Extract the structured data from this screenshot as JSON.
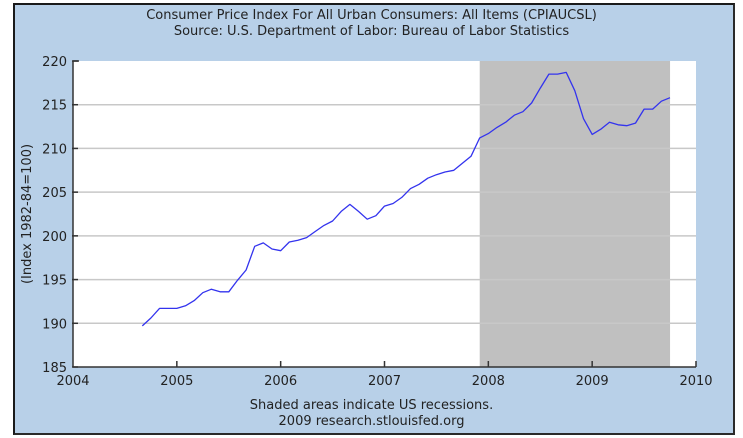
{
  "chart_data": {
    "type": "line",
    "title": "Consumer Price Index For All Urban Consumers: All Items (CPIAUCSL)",
    "subtitle": "Source: U.S. Department of Labor: Bureau of Labor Statistics",
    "xlabel": "",
    "ylabel": "(Index 1982-84=100)",
    "xlim": [
      2004,
      2010
    ],
    "ylim": [
      185,
      220
    ],
    "x_ticks": [
      2004,
      2005,
      2006,
      2007,
      2008,
      2009,
      2010
    ],
    "x_tick_labels": [
      "2004",
      "2005",
      "2006",
      "2007",
      "2008",
      "2009",
      "2010"
    ],
    "y_ticks": [
      185,
      190,
      195,
      200,
      205,
      210,
      215,
      220
    ],
    "y_tick_labels": [
      "185",
      "190",
      "195",
      "200",
      "205",
      "210",
      "215",
      "220"
    ],
    "grid": true,
    "recessions": [
      {
        "start": 2007.917,
        "end": 2009.75
      }
    ],
    "footnotes": [
      "Shaded areas indicate US recessions.",
      "2009 research.stlouisfed.org"
    ],
    "colors": {
      "line": "#3333ee",
      "recession": "#c0c0c0",
      "background": "#b8d0e8",
      "plot": "#ffffff",
      "grid": "#c8c8c8"
    },
    "series": [
      {
        "name": "CPIAUCSL",
        "x": [
          2004.667,
          2004.75,
          2004.833,
          2004.917,
          2005.0,
          2005.083,
          2005.167,
          2005.25,
          2005.333,
          2005.417,
          2005.5,
          2005.583,
          2005.667,
          2005.75,
          2005.833,
          2005.917,
          2006.0,
          2006.083,
          2006.167,
          2006.25,
          2006.333,
          2006.417,
          2006.5,
          2006.583,
          2006.667,
          2006.75,
          2006.833,
          2006.917,
          2007.0,
          2007.083,
          2007.167,
          2007.25,
          2007.333,
          2007.417,
          2007.5,
          2007.583,
          2007.667,
          2007.75,
          2007.833,
          2007.917,
          2008.0,
          2008.083,
          2008.167,
          2008.25,
          2008.333,
          2008.417,
          2008.5,
          2008.583,
          2008.667,
          2008.75,
          2008.833,
          2008.917,
          2009.0,
          2009.083,
          2009.167,
          2009.25,
          2009.333,
          2009.417,
          2009.5,
          2009.583,
          2009.667,
          2009.75
        ],
        "values": [
          189.7,
          190.6,
          191.7,
          191.7,
          191.7,
          192.0,
          192.6,
          193.5,
          193.9,
          193.6,
          193.6,
          194.9,
          196.1,
          198.8,
          199.2,
          198.5,
          198.3,
          199.3,
          199.5,
          199.8,
          200.5,
          201.2,
          201.7,
          202.8,
          203.6,
          202.8,
          201.9,
          202.3,
          203.4,
          203.7,
          204.4,
          205.4,
          205.9,
          206.6,
          207.0,
          207.3,
          207.5,
          208.3,
          209.1,
          211.2,
          211.7,
          212.4,
          213.0,
          213.8,
          214.2,
          215.2,
          216.9,
          218.5,
          218.5,
          218.7,
          216.6,
          213.4,
          211.6,
          212.2,
          213.0,
          212.7,
          212.6,
          212.9,
          214.5,
          214.5,
          215.4,
          215.8
        ]
      }
    ]
  }
}
